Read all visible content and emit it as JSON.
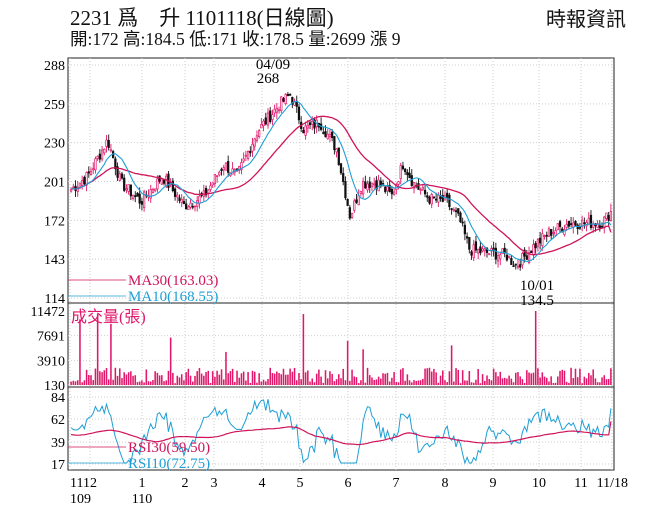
{
  "header": {
    "title": "2231 爲　升 1101118(日線圖)",
    "source": "時報資訊",
    "ohlc": "開:172 高:184.5 低:171 收:178.5 量:2699 漲 9"
  },
  "colors": {
    "up": "#e0176b",
    "down": "#111111",
    "ma30": "#d0145a",
    "ma10": "#1e9fd6",
    "volume": "#e0176b",
    "rsi30": "#d0145a",
    "rsi10": "#1e9fd6"
  },
  "chart_data": [
    {
      "type": "candlestick",
      "panel": "price",
      "y_ticks": [
        288,
        259,
        230,
        201,
        172,
        143,
        114
      ],
      "ylim": [
        114,
        288
      ],
      "x_ticks": [
        {
          "label": "11",
          "sub": "109"
        },
        {
          "label": "12",
          "sub": ""
        },
        {
          "label": "1",
          "sub": "110"
        },
        {
          "label": "2",
          "sub": ""
        },
        {
          "label": "3",
          "sub": ""
        },
        {
          "label": "4",
          "sub": ""
        },
        {
          "label": "5",
          "sub": ""
        },
        {
          "label": "6",
          "sub": ""
        },
        {
          "label": "7",
          "sub": ""
        },
        {
          "label": "8",
          "sub": ""
        },
        {
          "label": "9",
          "sub": ""
        },
        {
          "label": "10",
          "sub": ""
        },
        {
          "label": "11",
          "sub": ""
        },
        {
          "label": "11/18",
          "sub": ""
        }
      ],
      "legend": [
        {
          "name": "MA30(163.03)",
          "color": "#d0145a"
        },
        {
          "name": "MA10(168.55)",
          "color": "#1e9fd6"
        }
      ],
      "annotations": [
        {
          "text": "04/09",
          "x": "04/09"
        },
        {
          "text": "268",
          "x": "04/09"
        },
        {
          "text": "10/01",
          "x": "10/01"
        },
        {
          "text": "134.5",
          "x": "10/01"
        }
      ],
      "last": {
        "open": 172,
        "high": 184.5,
        "low": 171,
        "close": 178.5
      },
      "key_points": [
        {
          "date": "11/2020",
          "close": 195
        },
        {
          "date": "12/2020",
          "close": 230
        },
        {
          "date": "01/2021",
          "close": 205
        },
        {
          "date": "02/2021",
          "close": 180
        },
        {
          "date": "03/2021",
          "close": 215
        },
        {
          "date": "04/09",
          "high": 268
        },
        {
          "date": "05/2021",
          "close": 240
        },
        {
          "date": "05/2021",
          "close": 172
        },
        {
          "date": "06/2021",
          "close": 200
        },
        {
          "date": "07/2021",
          "close": 220
        },
        {
          "date": "08/2021",
          "close": 185
        },
        {
          "date": "08/2021",
          "close": 150
        },
        {
          "date": "09/2021",
          "close": 148
        },
        {
          "date": "10/01",
          "low": 134.5
        },
        {
          "date": "11/2021",
          "close": 168
        },
        {
          "date": "11/18",
          "close": 178.5
        }
      ],
      "ma30_last": 163.03,
      "ma10_last": 168.55
    },
    {
      "type": "bar",
      "panel": "volume",
      "ylabel": "成交量(張)",
      "y_ticks": [
        11472,
        7691,
        3910,
        130
      ],
      "ylim": [
        130,
        11472
      ],
      "last_volume": 2699
    },
    {
      "type": "line",
      "panel": "rsi",
      "y_ticks": [
        84,
        62,
        39,
        17
      ],
      "ylim": [
        17,
        84
      ],
      "legend": [
        {
          "name": "RSI30(59.50)",
          "color": "#d0145a"
        },
        {
          "name": "RSI10(72.75)",
          "color": "#1e9fd6"
        }
      ],
      "rsi30_last": 59.5,
      "rsi10_last": 72.75
    }
  ]
}
